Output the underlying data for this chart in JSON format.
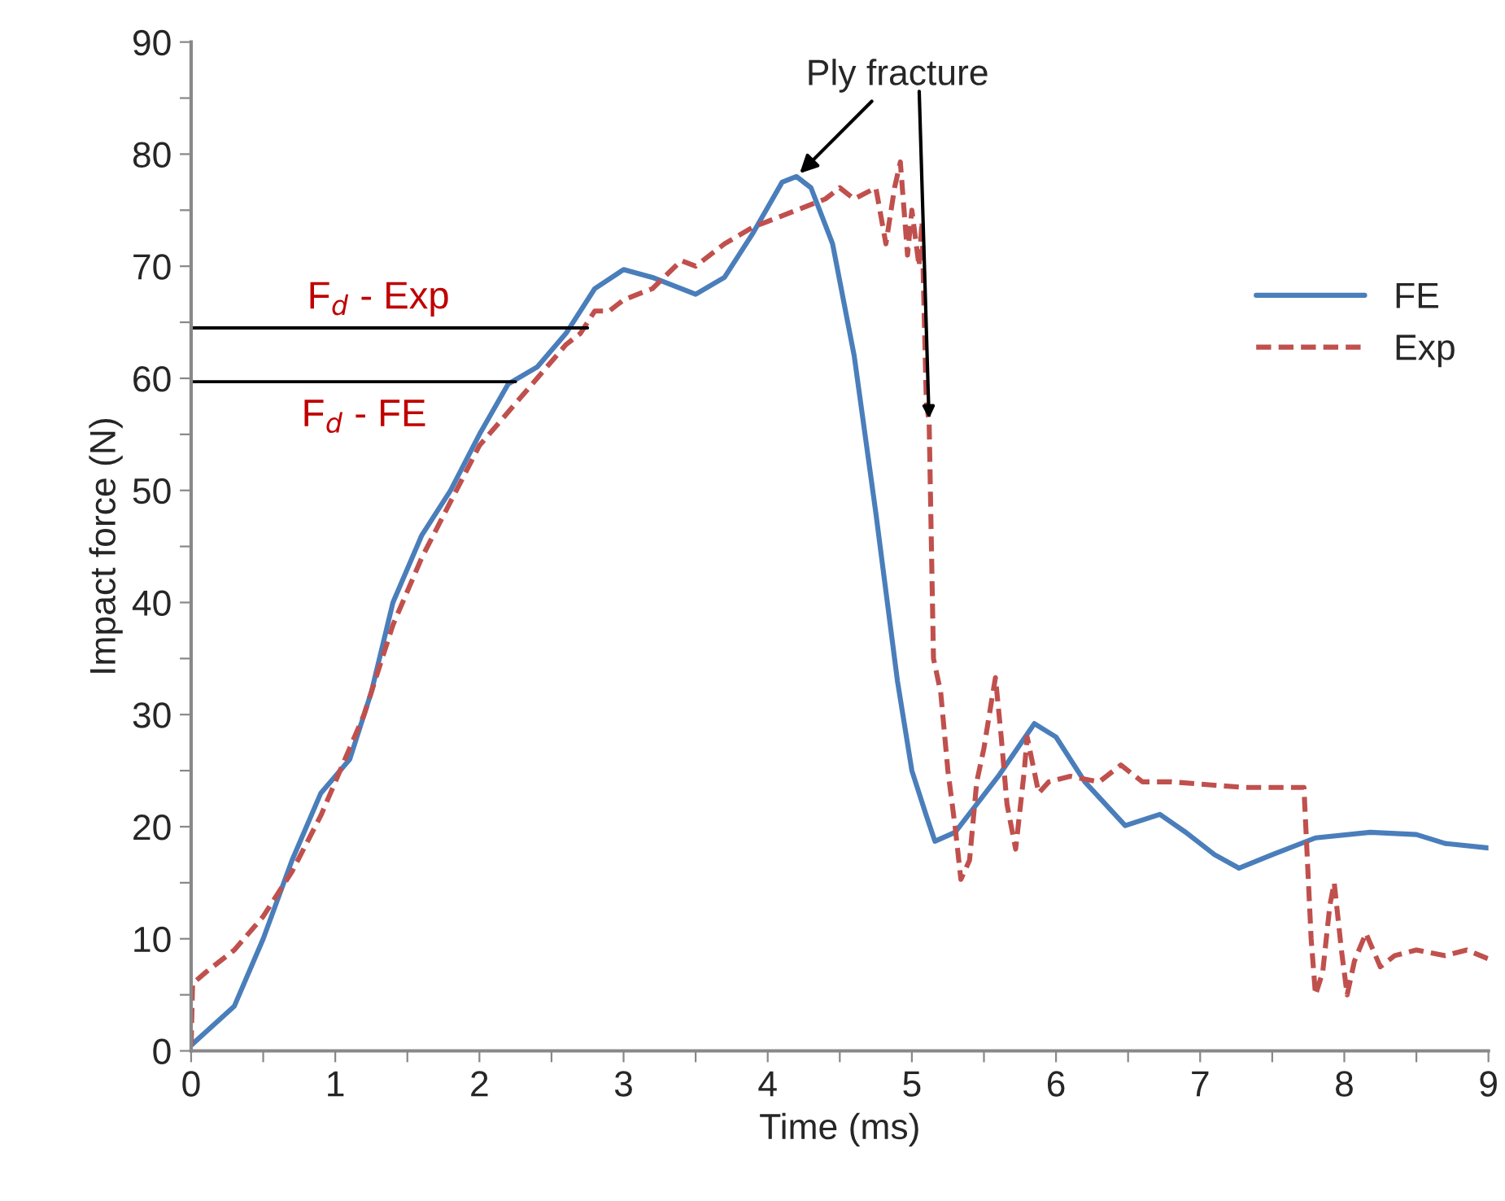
{
  "chart_data": {
    "type": "line",
    "xlabel": "Time (ms)",
    "ylabel": "Impact force (N)",
    "xlim": [
      0,
      9
    ],
    "ylim": [
      0,
      90
    ],
    "xticks": [
      0,
      {
        "value": 0.5,
        "label": null
      },
      1,
      {
        "value": 1.5,
        "label": null
      },
      2,
      {
        "value": 2.5,
        "label": null
      },
      3,
      {
        "value": 3.5,
        "label": null
      },
      4,
      {
        "value": 4.5,
        "label": null
      },
      5,
      {
        "value": 5.5,
        "label": null
      },
      6,
      {
        "value": 6.5,
        "label": null
      },
      7,
      {
        "value": 7.5,
        "label": null
      },
      8,
      {
        "value": 8.5,
        "label": null
      },
      9
    ],
    "yticks": [
      0,
      {
        "value": 5,
        "label": null
      },
      10,
      {
        "value": 15,
        "label": null
      },
      20,
      {
        "value": 25,
        "label": null
      },
      30,
      {
        "value": 35,
        "label": null
      },
      40,
      {
        "value": 45,
        "label": null
      },
      50,
      {
        "value": 55,
        "label": null
      },
      60,
      {
        "value": 65,
        "label": null
      },
      70,
      {
        "value": 75,
        "label": null
      },
      80,
      {
        "value": 85,
        "label": null
      },
      90
    ],
    "grid": false,
    "legend": "right",
    "series": [
      {
        "name": "FE",
        "color": "#4a7ebb",
        "line_style": "solid",
        "x": [
          0,
          0.3,
          0.5,
          0.7,
          0.9,
          1.0,
          1.1,
          1.25,
          1.4,
          1.6,
          1.8,
          2.0,
          2.2,
          2.4,
          2.6,
          2.8,
          3.0,
          3.2,
          3.5,
          3.7,
          3.9,
          4.1,
          4.2,
          4.3,
          4.45,
          4.6,
          4.75,
          4.9,
          5.0,
          5.1,
          5.16,
          5.3,
          5.6,
          5.85,
          6.0,
          6.2,
          6.48,
          6.72,
          6.9,
          7.1,
          7.27,
          7.5,
          7.8,
          8.18,
          8.5,
          8.7,
          9.0
        ],
        "values": [
          0.5,
          4,
          10,
          17,
          23,
          24.5,
          26,
          32,
          40,
          46,
          50,
          55,
          59.5,
          61,
          64,
          68,
          69.7,
          69,
          67.5,
          69,
          73,
          77.5,
          78,
          77,
          72,
          62,
          48,
          33,
          25,
          21,
          18.7,
          19.5,
          24.5,
          29.2,
          28,
          24,
          20.1,
          21.1,
          19.5,
          17.5,
          16.3,
          17.5,
          19,
          19.5,
          19.3,
          18.5,
          18.1
        ]
      },
      {
        "name": "Exp",
        "color": "#c0504d",
        "line_style": "dashed",
        "x": [
          0,
          0.01,
          0.1,
          0.3,
          0.5,
          0.7,
          0.9,
          1.0,
          1.2,
          1.4,
          1.6,
          1.8,
          2.0,
          2.2,
          2.4,
          2.6,
          2.7,
          2.8,
          2.9,
          3.0,
          3.2,
          3.4,
          3.5,
          3.7,
          3.9,
          4.0,
          4.2,
          4.4,
          4.5,
          4.6,
          4.75,
          4.82,
          4.88,
          4.92,
          4.97,
          5.0,
          5.05,
          5.07,
          5.1,
          5.12,
          5.15,
          5.2,
          5.25,
          5.3,
          5.34,
          5.4,
          5.45,
          5.5,
          5.55,
          5.58,
          5.62,
          5.66,
          5.72,
          5.78,
          5.8,
          5.88,
          5.95,
          6.1,
          6.3,
          6.45,
          6.6,
          6.8,
          7.0,
          7.3,
          7.5,
          7.72,
          7.77,
          7.8,
          7.85,
          7.9,
          7.93,
          7.98,
          8.02,
          8.07,
          8.15,
          8.25,
          8.35,
          8.5,
          8.7,
          8.85,
          9.0
        ],
        "values": [
          0.5,
          6,
          7,
          9,
          12,
          16,
          21,
          24,
          30,
          38,
          44,
          49,
          54,
          57,
          60,
          63,
          64,
          66,
          66,
          67,
          68,
          70.5,
          70,
          72,
          73.5,
          74,
          75,
          76,
          77,
          76,
          77,
          72,
          77,
          79.3,
          71,
          75,
          70,
          74,
          58,
          56,
          35,
          32,
          25,
          20,
          15.3,
          17,
          24,
          27,
          31,
          33.3,
          28,
          22,
          18,
          25,
          28,
          23,
          24,
          24.5,
          24,
          25.5,
          24,
          24,
          23.8,
          23.5,
          23.5,
          23.5,
          10,
          5,
          7,
          13,
          15,
          9,
          5,
          8,
          10.5,
          7.5,
          8.5,
          9,
          8.5,
          9,
          8.2
        ]
      },
      {
        "color": "#000000",
        "line_style": "solid",
        "x": [
          0,
          2.75
        ],
        "values": [
          64.5,
          64.5
        ]
      },
      {
        "color": "#000000",
        "line_style": "solid",
        "x": [
          0,
          2.25
        ],
        "values": [
          59.7,
          59.7
        ]
      }
    ],
    "annotations": [
      {
        "text": "Ply fracture",
        "x": 4.2,
        "y": 78
      },
      {
        "text": "F$_{d}$ - Exp",
        "x": 1.3,
        "y": 64.5
      },
      {
        "text": "F$_{d}$ - FE",
        "x": 1.2,
        "y": 59.7
      }
    ]
  }
}
